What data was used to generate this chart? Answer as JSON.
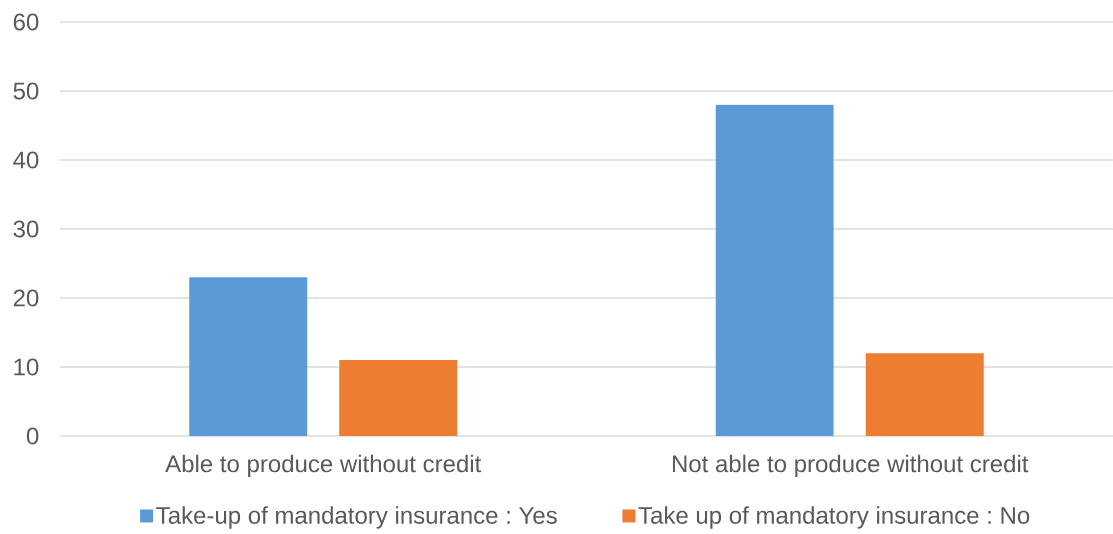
{
  "chart_data": {
    "type": "bar",
    "categories": [
      "Able to produce without credit",
      "Not able to produce without credit"
    ],
    "series": [
      {
        "name": "Take-up of mandatory insurance : Yes",
        "color": "#5b9bd5",
        "values": [
          23,
          48
        ]
      },
      {
        "name": "Take up of mandatory insurance : No",
        "color": "#ed7d31",
        "values": [
          11,
          12
        ]
      }
    ],
    "ylim": [
      0,
      60
    ],
    "yticks": [
      0,
      10,
      20,
      30,
      40,
      50,
      60
    ],
    "grid": "y",
    "legend": "bottom"
  }
}
